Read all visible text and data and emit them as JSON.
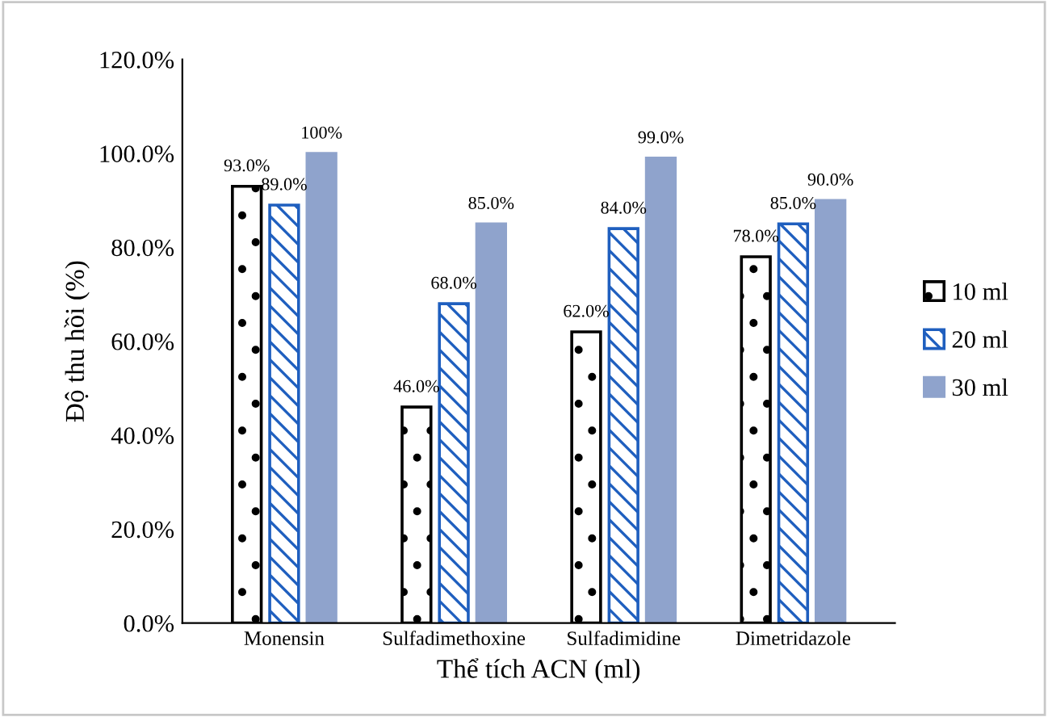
{
  "chart_data": {
    "type": "bar",
    "xlabel": "Thể tích ACN (ml)",
    "ylabel": "Độ thu hồi (%)",
    "categories": [
      "Monensin",
      "Sulfadimethoxine",
      "Sulfadimidine",
      "Dimetridazole"
    ],
    "series": [
      {
        "name": "10 ml",
        "color": "#000000",
        "values": [
          93,
          46,
          62,
          78
        ],
        "value_labels": [
          "93.0%",
          "46.0%",
          "62.0%",
          "78.0%"
        ]
      },
      {
        "name": "20 ml",
        "color": "#1f5fbf",
        "values": [
          89,
          68,
          84,
          85
        ],
        "value_labels": [
          "89.0%",
          "68.0%",
          "84.0%",
          "85.0%"
        ]
      },
      {
        "name": "30 ml",
        "color": "#8fa3cc",
        "values": [
          100,
          85,
          99,
          90
        ],
        "value_labels": [
          "100%",
          "85.0%",
          "99.0%",
          "90.0%"
        ]
      }
    ],
    "ylim": [
      0,
      120
    ],
    "yticks": [
      {
        "value": 0,
        "label": "0.0%"
      },
      {
        "value": 20,
        "label": "20.0%"
      },
      {
        "value": 40,
        "label": "40.0%"
      },
      {
        "value": 60,
        "label": "60.0%"
      },
      {
        "value": 80,
        "label": "80.0%"
      },
      {
        "value": 100,
        "label": "100.0%"
      },
      {
        "value": 120,
        "label": "120.0%"
      }
    ],
    "grid": false,
    "legend": "right"
  }
}
